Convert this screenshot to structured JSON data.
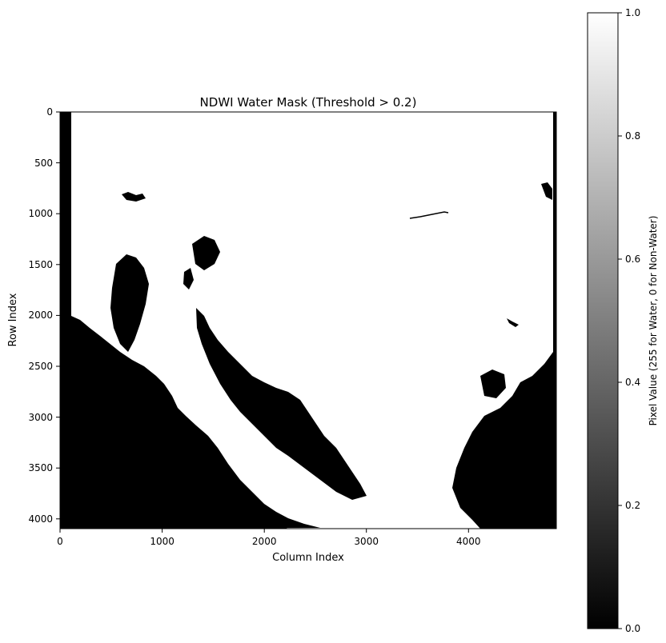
{
  "chart_data": {
    "type": "heatmap",
    "title": "NDWI Water Mask (Threshold > 0.2)",
    "xlabel": "Column Index",
    "ylabel": "Row Index",
    "xlim": [
      0,
      4860
    ],
    "ylim": [
      4096,
      0
    ],
    "x_ticks": [
      0,
      1000,
      2000,
      3000,
      4000
    ],
    "y_ticks": [
      0,
      500,
      1000,
      1500,
      2000,
      2500,
      3000,
      3500,
      4000
    ],
    "colormap": "gray",
    "colorbar": {
      "label": "Pixel Value (255 for Water, 0 for Non-Water)",
      "range": [
        0.0,
        1.0
      ],
      "ticks": [
        "0.0",
        "0.2",
        "0.4",
        "0.6",
        "0.8",
        "1.0"
      ]
    },
    "water_color": "#ffffff",
    "nonwater_color": "#000000"
  }
}
